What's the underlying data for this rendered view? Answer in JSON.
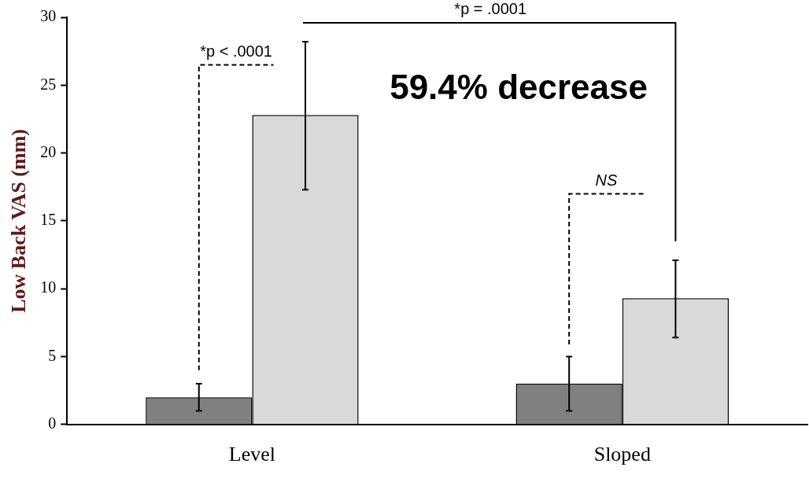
{
  "chart_data": {
    "type": "bar",
    "ylabel": "Low Back VAS (mm)",
    "categories": [
      "Level",
      "Sloped"
    ],
    "series": [
      {
        "color": "#808080",
        "values": [
          2,
          3
        ],
        "errors": [
          1,
          2
        ]
      },
      {
        "color": "#d9d9d9",
        "values": [
          22.8,
          9.3
        ],
        "errors": [
          [
            17.3,
            28.2
          ],
          [
            6.4,
            12.1
          ]
        ]
      }
    ],
    "ylim": [
      0,
      30
    ],
    "yticks": [
      0,
      5,
      10,
      15,
      20,
      25,
      30
    ],
    "annotations": [
      "*p < .0001",
      "*p = .0001",
      "NS",
      "59.4% decrease"
    ],
    "grid": false,
    "legend": false
  }
}
